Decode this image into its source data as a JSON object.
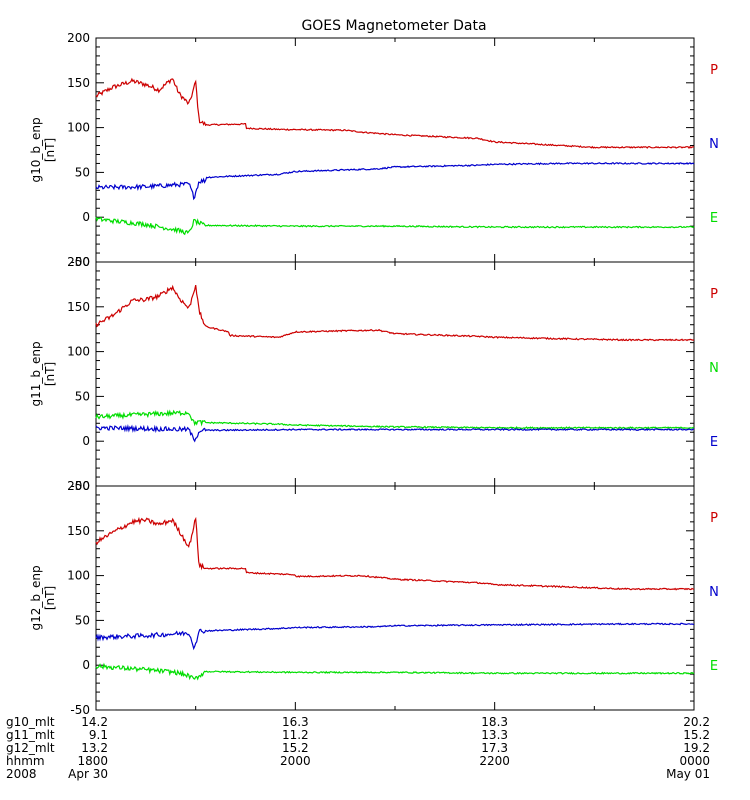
{
  "chart_data": {
    "type": "line",
    "title": "GOES Magnetometer Data",
    "x_range": [
      "1800",
      "0000"
    ],
    "x_major_ticks": [
      "1800",
      "2000",
      "2200",
      "0000"
    ],
    "panels": [
      {
        "ylabel": "g10_b_enp",
        "yunit": "[nT]",
        "ylim": [
          -50,
          200
        ],
        "yticks": [
          "200",
          "150",
          "100",
          "50",
          "0",
          "-50"
        ],
        "series": [
          {
            "name": "P",
            "color": "#cc0000",
            "points": [
              [
                "1800",
                135
              ],
              [
                "1810",
                145
              ],
              [
                "1822",
                152
              ],
              [
                "1830",
                148
              ],
              [
                "1838",
                142
              ],
              [
                "1846",
                155
              ],
              [
                "1850",
                138
              ],
              [
                "1856",
                126
              ],
              [
                "1860",
                151
              ],
              [
                "1862",
                108
              ],
              [
                "1866",
                103
              ],
              [
                "1890",
                104
              ],
              [
                "1920",
                100
              ],
              [
                "1950",
                98
              ],
              [
                "1990",
                97
              ],
              [
                "2040",
                95
              ],
              [
                "2100",
                92
              ],
              [
                "2150",
                88
              ],
              [
                "2200",
                84
              ],
              [
                "2240",
                80
              ],
              [
                "2300",
                78
              ],
              [
                "2320",
                78
              ]
            ]
          },
          {
            "name": "N",
            "color": "#0000cc",
            "points": [
              [
                "1800",
                33
              ],
              [
                "1830",
                34
              ],
              [
                "1856",
                37
              ],
              [
                "1859",
                22
              ],
              [
                "1862",
                40
              ],
              [
                "1866",
                41
              ],
              [
                "1900",
                44
              ],
              [
                "1950",
                48
              ],
              [
                "2000",
                51
              ],
              [
                "2050",
                54
              ],
              [
                "2100",
                56
              ],
              [
                "2150",
                58
              ],
              [
                "2200",
                59
              ],
              [
                "2240",
                60
              ],
              [
                "2320",
                60
              ]
            ]
          },
          {
            "name": "E",
            "color": "#00dd00",
            "points": [
              [
                "1800",
                -2
              ],
              [
                "1830",
                -8
              ],
              [
                "1848",
                -14
              ],
              [
                "1856",
                -18
              ],
              [
                "1859",
                -4
              ],
              [
                "1866",
                -10
              ],
              [
                "1900",
                -9
              ],
              [
                "2000",
                -10
              ],
              [
                "2100",
                -10
              ],
              [
                "2200",
                -11
              ],
              [
                "2320",
                -11
              ]
            ]
          }
        ]
      },
      {
        "ylabel": "g11_b_enp",
        "yunit": "[nT]",
        "ylim": [
          -50,
          200
        ],
        "yticks": [
          "200",
          "150",
          "100",
          "50",
          "0",
          "-50"
        ],
        "series": [
          {
            "name": "P",
            "color": "#cc0000",
            "points": [
              [
                "1800",
                130
              ],
              [
                "1810",
                140
              ],
              [
                "1822",
                157
              ],
              [
                "1830",
                158
              ],
              [
                "1838",
                162
              ],
              [
                "1846",
                172
              ],
              [
                "1850",
                160
              ],
              [
                "1856",
                148
              ],
              [
                "1860",
                175
              ],
              [
                "1862",
                145
              ],
              [
                "1866",
                128
              ],
              [
                "1880",
                122
              ],
              [
                "1920",
                118
              ],
              [
                "1950",
                116
              ],
              [
                "2000",
                122
              ],
              [
                "2050",
                124
              ],
              [
                "2100",
                120
              ],
              [
                "2150",
                117
              ],
              [
                "2200",
                116
              ],
              [
                "2250",
                114
              ],
              [
                "2320",
                113
              ]
            ]
          },
          {
            "name": "N",
            "color": "#00dd00",
            "points": [
              [
                "1800",
                27
              ],
              [
                "1830",
                30
              ],
              [
                "1856",
                32
              ],
              [
                "1859",
                20
              ],
              [
                "1862",
                22
              ],
              [
                "1900",
                21
              ],
              [
                "1950",
                19
              ],
              [
                "2000",
                18
              ],
              [
                "2100",
                16
              ],
              [
                "2200",
                15
              ],
              [
                "2320",
                15
              ]
            ]
          },
          {
            "name": "E",
            "color": "#0000cc",
            "points": [
              [
                "1800",
                15
              ],
              [
                "1830",
                14
              ],
              [
                "1856",
                13
              ],
              [
                "1859",
                1
              ],
              [
                "1862",
                10
              ],
              [
                "1900",
                12
              ],
              [
                "2000",
                13
              ],
              [
                "2100",
                13
              ],
              [
                "2200",
                13
              ],
              [
                "2320",
                13
              ]
            ]
          }
        ]
      },
      {
        "ylabel": "g12_b_enp",
        "yunit": "[nT]",
        "ylim": [
          -50,
          200
        ],
        "yticks": [
          "200",
          "150",
          "100",
          "50",
          "0",
          "-50"
        ],
        "series": [
          {
            "name": "P",
            "color": "#cc0000",
            "points": [
              [
                "1800",
                137
              ],
              [
                "1810",
                148
              ],
              [
                "1822",
                160
              ],
              [
                "1830",
                162
              ],
              [
                "1838",
                157
              ],
              [
                "1846",
                162
              ],
              [
                "1850",
                150
              ],
              [
                "1856",
                132
              ],
              [
                "1860",
                164
              ],
              [
                "1862",
                112
              ],
              [
                "1866",
                108
              ],
              [
                "1890",
                108
              ],
              [
                "1920",
                104
              ],
              [
                "1960",
                101
              ],
              [
                "2000",
                99
              ],
              [
                "2040",
                100
              ],
              [
                "2100",
                96
              ],
              [
                "2150",
                92
              ],
              [
                "2200",
                90
              ],
              [
                "2250",
                87
              ],
              [
                "2320",
                85
              ]
            ]
          },
          {
            "name": "N",
            "color": "#0000cc",
            "points": [
              [
                "1800",
                31
              ],
              [
                "1830",
                33
              ],
              [
                "1856",
                36
              ],
              [
                "1859",
                20
              ],
              [
                "1862",
                36
              ],
              [
                "1900",
                38
              ],
              [
                "1950",
                41
              ],
              [
                "2000",
                42
              ],
              [
                "2050",
                43
              ],
              [
                "2100",
                44
              ],
              [
                "2200",
                45
              ],
              [
                "2320",
                46
              ]
            ]
          },
          {
            "name": "E",
            "color": "#00dd00",
            "points": [
              [
                "1800",
                -1
              ],
              [
                "1830",
                -5
              ],
              [
                "1848",
                -8
              ],
              [
                "1856",
                -12
              ],
              [
                "1859",
                -16
              ],
              [
                "1866",
                -7
              ],
              [
                "1900",
                -7
              ],
              [
                "2000",
                -8
              ],
              [
                "2100",
                -8
              ],
              [
                "2200",
                -9
              ],
              [
                "2320",
                -9
              ]
            ]
          }
        ]
      }
    ],
    "footer": {
      "row_labels": [
        "g10_mlt",
        "g11_mlt",
        "g12_mlt",
        "hhmm",
        "2008"
      ],
      "columns": [
        {
          "x": "1800",
          "values": [
            "14.2",
            "9.1",
            "13.2",
            "1800",
            "Apr 30"
          ]
        },
        {
          "x": "2000",
          "values": [
            "16.3",
            "11.2",
            "15.2",
            "2000",
            ""
          ]
        },
        {
          "x": "2200",
          "values": [
            "18.3",
            "13.3",
            "17.3",
            "2200",
            ""
          ]
        },
        {
          "x": "0000",
          "values": [
            "20.2",
            "15.2",
            "19.2",
            "0000",
            "May 01"
          ]
        }
      ]
    }
  }
}
